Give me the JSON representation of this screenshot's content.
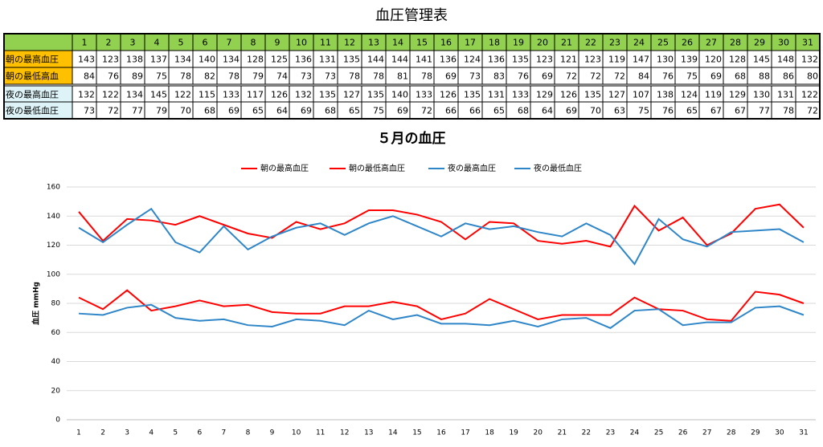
{
  "title": "血圧管理表",
  "table": {
    "row_labels": [
      "朝の最高血圧",
      "朝の最低高血",
      "夜の最高血圧",
      "夜の最低血圧"
    ]
  },
  "chart_data": {
    "type": "line",
    "title": "５月の血圧",
    "y_label": "血圧 mmHg",
    "categories": [
      1,
      2,
      3,
      4,
      5,
      6,
      7,
      8,
      9,
      10,
      11,
      12,
      13,
      14,
      15,
      16,
      17,
      18,
      19,
      20,
      21,
      22,
      23,
      24,
      25,
      26,
      27,
      28,
      29,
      30,
      31
    ],
    "ylim": [
      0,
      160
    ],
    "yticks": [
      0,
      20,
      40,
      60,
      80,
      100,
      120,
      140,
      160
    ],
    "grid": true,
    "legend": "top",
    "series": [
      {
        "name": "朝の最高血圧",
        "color": "#ff0000",
        "values": [
          143,
          123,
          138,
          137,
          134,
          140,
          134,
          128,
          125,
          136,
          131,
          135,
          144,
          144,
          141,
          136,
          124,
          136,
          135,
          123,
          121,
          123,
          119,
          147,
          130,
          139,
          120,
          128,
          145,
          148,
          132
        ]
      },
      {
        "name": "朝の最低高血圧",
        "color": "#ff0000",
        "values": [
          84,
          76,
          89,
          75,
          78,
          82,
          78,
          79,
          74,
          73,
          73,
          78,
          78,
          81,
          78,
          69,
          73,
          83,
          76,
          69,
          72,
          72,
          72,
          84,
          76,
          75,
          69,
          68,
          88,
          86,
          80
        ]
      },
      {
        "name": "夜の最高血圧",
        "color": "#2e86c8",
        "values": [
          132,
          122,
          134,
          145,
          122,
          115,
          133,
          117,
          126,
          132,
          135,
          127,
          135,
          140,
          133,
          126,
          135,
          131,
          133,
          129,
          126,
          135,
          127,
          107,
          138,
          124,
          119,
          129,
          130,
          131,
          122
        ]
      },
      {
        "name": "夜の最低血圧",
        "color": "#2e86c8",
        "values": [
          73,
          72,
          77,
          79,
          70,
          68,
          69,
          65,
          64,
          69,
          68,
          65,
          75,
          69,
          72,
          66,
          66,
          65,
          68,
          64,
          69,
          70,
          63,
          75,
          76,
          65,
          67,
          67,
          77,
          78,
          72
        ]
      }
    ]
  }
}
